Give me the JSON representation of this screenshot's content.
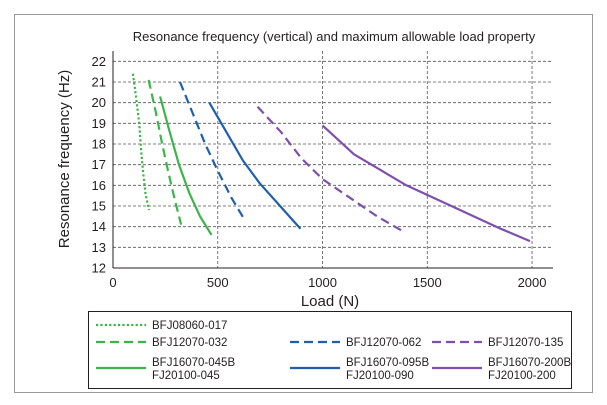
{
  "chart_data": {
    "type": "line",
    "title": "Resonance frequency (vertical) and maximum allowable load property",
    "xlabel": "Load (N)",
    "ylabel": "Resonance frequency (Hz)",
    "xlim": [
      0,
      2100
    ],
    "ylim": [
      12,
      22.5
    ],
    "xticks": [
      "0",
      "500",
      "1000",
      "1500",
      "2000"
    ],
    "yticks": [
      "12",
      "13",
      "14",
      "15",
      "16",
      "17",
      "18",
      "19",
      "20",
      "21",
      "22"
    ],
    "grid": "dashed",
    "legend_position": "bottom",
    "series": [
      {
        "name": "BFJ08060-017",
        "legend_lines": [
          "BFJ08060-017"
        ],
        "color": "#3cb44b",
        "dash": "dotted",
        "points": [
          [
            95,
            21.4
          ],
          [
            110,
            20.3
          ],
          [
            125,
            19.0
          ],
          [
            135,
            17.6
          ],
          [
            145,
            16.5
          ],
          [
            155,
            15.6
          ],
          [
            172,
            14.8
          ]
        ]
      },
      {
        "name": "BFJ12070-032",
        "legend_lines": [
          "BFJ12070-032"
        ],
        "color": "#3cb44b",
        "dash": "dashed",
        "points": [
          [
            170,
            21.1
          ],
          [
            205,
            19.5
          ],
          [
            235,
            18.0
          ],
          [
            265,
            16.6
          ],
          [
            295,
            15.3
          ],
          [
            325,
            14.1
          ]
        ]
      },
      {
        "name": "BFJ16070-045B FJ20100-045",
        "legend_lines": [
          "BFJ16070-045B",
          "FJ20100-045"
        ],
        "color": "#3cb44b",
        "dash": "solid",
        "points": [
          [
            225,
            20.3
          ],
          [
            270,
            18.6
          ],
          [
            315,
            17.0
          ],
          [
            365,
            15.6
          ],
          [
            415,
            14.5
          ],
          [
            470,
            13.6
          ]
        ]
      },
      {
        "name": "BFJ12070-062",
        "legend_lines": [
          "BFJ12070-062"
        ],
        "color": "#1f5fae",
        "dash": "dashed",
        "points": [
          [
            320,
            21.0
          ],
          [
            380,
            19.5
          ],
          [
            440,
            18.0
          ],
          [
            500,
            16.7
          ],
          [
            565,
            15.4
          ],
          [
            630,
            14.3
          ]
        ]
      },
      {
        "name": "BFJ16070-095B FJ20100-090",
        "legend_lines": [
          "BFJ16070-095B",
          "FJ20100-090"
        ],
        "color": "#1f5fae",
        "dash": "solid",
        "points": [
          [
            460,
            20.0
          ],
          [
            540,
            18.6
          ],
          [
            620,
            17.2
          ],
          [
            700,
            16.1
          ],
          [
            780,
            15.2
          ],
          [
            850,
            14.4
          ],
          [
            895,
            13.9
          ]
        ]
      },
      {
        "name": "BFJ12070-135",
        "legend_lines": [
          "BFJ12070-135"
        ],
        "color": "#7f4fb0",
        "dash": "dashed",
        "points": [
          [
            690,
            19.8
          ],
          [
            800,
            18.6
          ],
          [
            900,
            17.3
          ],
          [
            1000,
            16.3
          ],
          [
            1130,
            15.4
          ],
          [
            1260,
            14.5
          ],
          [
            1380,
            13.8
          ]
        ]
      },
      {
        "name": "BFJ16070-200B FJ20100-200",
        "legend_lines": [
          "BFJ16070-200B",
          "FJ20100-200"
        ],
        "color": "#7f4fb0",
        "dash": "solid",
        "points": [
          [
            1000,
            18.9
          ],
          [
            1150,
            17.5
          ],
          [
            1300,
            16.6
          ],
          [
            1400,
            16.0
          ],
          [
            1550,
            15.3
          ],
          [
            1700,
            14.6
          ],
          [
            1850,
            13.9
          ],
          [
            1990,
            13.3
          ]
        ]
      }
    ]
  }
}
